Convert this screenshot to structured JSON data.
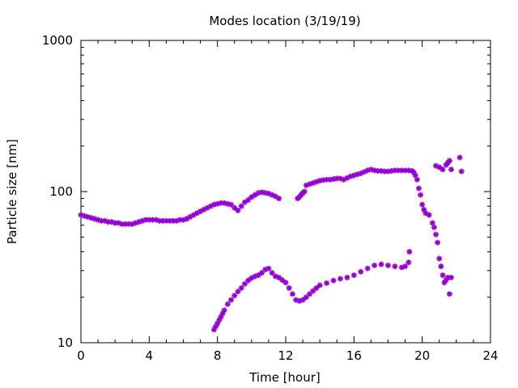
{
  "chart_data": {
    "type": "scatter",
    "title": "Modes location (3/19/19)",
    "xlabel": "Time [hour]",
    "ylabel": "Particle size [nm]",
    "xlim": [
      0,
      24
    ],
    "ylim": [
      10,
      1000
    ],
    "yscale": "log",
    "xticks": [
      0,
      4,
      8,
      12,
      16,
      20,
      24
    ],
    "xtick_labels": [
      "0",
      "4",
      "8",
      "12",
      "16",
      "20",
      "24"
    ],
    "yticks": [
      10,
      100,
      1000
    ],
    "ytick_labels": [
      "10",
      "100",
      "1000"
    ],
    "grid": false,
    "legend": "none",
    "marker_color": "#9400d3",
    "series": [
      {
        "x": [
          0.0,
          0.2,
          0.4,
          0.6,
          0.8,
          1.0,
          1.2,
          1.4,
          1.6,
          1.8,
          2.0,
          2.2,
          2.4,
          2.6,
          2.8,
          3.0,
          3.2,
          3.4,
          3.6,
          3.8,
          4.0,
          4.2,
          4.4,
          4.6,
          4.8,
          5.0,
          5.2,
          5.4,
          5.6,
          5.8,
          6.0,
          6.2,
          6.4,
          6.6,
          6.8,
          7.0,
          7.2,
          7.4,
          7.6,
          7.8,
          8.0,
          8.2,
          8.4,
          8.6,
          8.8,
          9.0,
          9.2,
          9.4,
          9.6,
          9.8,
          10.0,
          10.2,
          10.4,
          10.6,
          10.8,
          11.0,
          11.2,
          11.4,
          11.6
        ],
        "y": [
          70,
          69,
          68,
          67,
          66,
          65,
          64,
          64,
          63,
          63,
          62,
          62,
          61,
          61,
          61,
          61,
          62,
          63,
          64,
          65,
          65,
          65,
          65,
          64,
          64,
          64,
          64,
          64,
          64,
          65,
          65,
          66,
          68,
          70,
          72,
          74,
          76,
          78,
          80,
          82,
          83,
          84,
          84,
          83,
          82,
          78,
          75,
          80,
          85,
          88,
          92,
          95,
          98,
          99,
          98,
          97,
          95,
          93,
          90
        ]
      },
      {
        "x": [
          12.7,
          12.8,
          12.9,
          13.0,
          13.1,
          13.2,
          13.4,
          13.6,
          13.8,
          14.0,
          14.2,
          14.4,
          14.6,
          14.8,
          15.0,
          15.2,
          15.4,
          15.6,
          15.8,
          16.0,
          16.2,
          16.4,
          16.6,
          16.8,
          17.0,
          17.2,
          17.4,
          17.6,
          17.8,
          18.0,
          18.2,
          18.4,
          18.6,
          18.8,
          19.0,
          19.2,
          19.4,
          19.5,
          19.6,
          19.7,
          19.8,
          19.9,
          20.0,
          20.1,
          20.2,
          20.4,
          20.6,
          20.7,
          20.8,
          20.9,
          21.0,
          21.1,
          21.2,
          21.3,
          21.4,
          21.5,
          21.6,
          21.7
        ],
        "y": [
          90,
          92,
          95,
          98,
          100,
          110,
          112,
          114,
          116,
          118,
          119,
          120,
          120,
          121,
          122,
          122,
          120,
          123,
          126,
          128,
          130,
          132,
          135,
          138,
          140,
          138,
          137,
          137,
          136,
          136,
          137,
          138,
          138,
          138,
          138,
          138,
          137,
          134,
          128,
          120,
          105,
          95,
          82,
          76,
          72,
          70,
          62,
          58,
          52,
          46,
          36,
          32,
          28,
          25,
          26,
          27,
          21,
          27
        ]
      },
      {
        "x": [
          20.8,
          21.0,
          21.2,
          21.4,
          21.5,
          21.6,
          21.7,
          22.2,
          22.3
        ],
        "y": [
          148,
          145,
          140,
          150,
          155,
          160,
          140,
          168,
          136
        ]
      },
      {
        "x": [
          7.8,
          7.9,
          8.0,
          8.1,
          8.2,
          8.3,
          8.4,
          8.6,
          8.8,
          9.0,
          9.2,
          9.4,
          9.6,
          9.8,
          10.0,
          10.2,
          10.4,
          10.6,
          10.8,
          11.0,
          11.2,
          11.4,
          11.6,
          11.8,
          12.0,
          12.2,
          12.4,
          12.6,
          12.8,
          13.0,
          13.2,
          13.4,
          13.6,
          13.8,
          14.0,
          14.4,
          14.8,
          15.2,
          15.6,
          16.0,
          16.4,
          16.8,
          17.2,
          17.6,
          18.0,
          18.4,
          18.8,
          19.0,
          19.2,
          19.25
        ],
        "y": [
          12.2,
          12.8,
          13.4,
          14.1,
          14.8,
          15.6,
          16.4,
          18.0,
          19.2,
          20.5,
          21.8,
          23.0,
          24.5,
          25.8,
          26.8,
          27.5,
          28.0,
          29.0,
          30.5,
          31.0,
          29.0,
          27.5,
          27.0,
          26.0,
          25.0,
          23.0,
          21.0,
          19.2,
          18.9,
          19.2,
          20.0,
          21.0,
          22.0,
          23.0,
          24.0,
          24.8,
          25.8,
          26.5,
          27.0,
          28.0,
          29.5,
          31.0,
          32.5,
          33.0,
          32.5,
          32.0,
          31.5,
          32.0,
          34.0,
          40.0
        ]
      }
    ]
  }
}
